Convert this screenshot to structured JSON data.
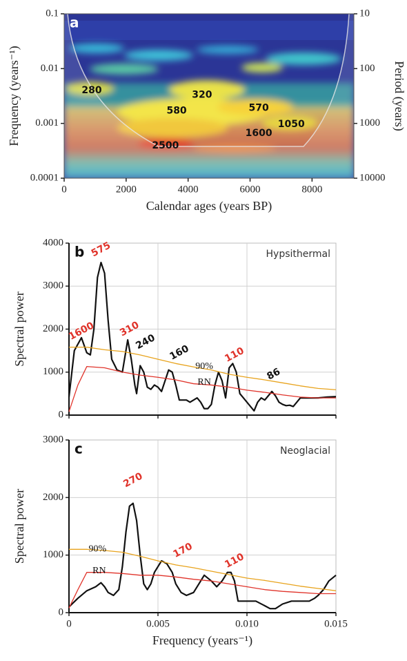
{
  "chart_data": [
    {
      "type": "wavelet",
      "panel_label": "a",
      "xlabel": "Calendar ages (years BP)",
      "ylabel": "Frequency (years⁻¹)",
      "y2label": "Period (years)",
      "xlim": [
        0,
        9350
      ],
      "xticks": [
        0,
        2000,
        4000,
        6000,
        8000
      ],
      "ylim": [
        0.0001,
        0.1
      ],
      "yticks": [
        0.0001,
        0.001,
        0.01,
        0.1
      ],
      "ylog": true,
      "y2lim": [
        10000,
        10
      ],
      "y2ticks": [
        10,
        100,
        1000,
        10000
      ],
      "annotations": [
        {
          "text": "280",
          "x": 890,
          "y": 0.004,
          "color": "#111111"
        },
        {
          "text": "320",
          "x": 4450,
          "y": 0.0033,
          "color": "#111111"
        },
        {
          "text": "580",
          "x": 3630,
          "y": 0.0017,
          "color": "#111111"
        },
        {
          "text": "570",
          "x": 6280,
          "y": 0.0019,
          "color": "#111111"
        },
        {
          "text": "1050",
          "x": 7330,
          "y": 0.00096,
          "color": "#111111"
        },
        {
          "text": "1600",
          "x": 6280,
          "y": 0.00066,
          "color": "#111111"
        },
        {
          "text": "2500",
          "x": 3270,
          "y": 0.00039,
          "color": "#111111"
        }
      ]
    },
    {
      "type": "line",
      "panel_label": "b",
      "subtitle": "Hypsithermal",
      "ylabel": "Spectral power",
      "xlim": [
        0,
        0.015
      ],
      "xticks": [
        0,
        0.005,
        0.01,
        0.015
      ],
      "show_xtick_labels": false,
      "ylim": [
        0,
        4000
      ],
      "yticks": [
        0,
        1000,
        2000,
        3000,
        4000
      ],
      "grid": true,
      "series": [
        {
          "color": "#111111",
          "x": [
            0,
            0.0003,
            0.0007,
            0.001,
            0.0012,
            0.0014,
            0.0016,
            0.0018,
            0.002,
            0.0022,
            0.0024,
            0.0027,
            0.003,
            0.0032,
            0.0033,
            0.0035,
            0.0037,
            0.0038,
            0.004,
            0.0042,
            0.0044,
            0.0046,
            0.0048,
            0.005,
            0.0052,
            0.0054,
            0.0056,
            0.0058,
            0.006,
            0.0062,
            0.0064,
            0.0066,
            0.0068,
            0.007,
            0.0072,
            0.0074,
            0.0076,
            0.0078,
            0.008,
            0.0082,
            0.0084,
            0.0086,
            0.0088,
            0.009,
            0.0092,
            0.0094,
            0.0096,
            0.0098,
            0.01,
            0.0102,
            0.0104,
            0.0106,
            0.0108,
            0.011,
            0.0112,
            0.0114,
            0.0116,
            0.0118,
            0.012,
            0.0122,
            0.0124,
            0.0126,
            0.0128,
            0.013,
            0.0135,
            0.014,
            0.0145,
            0.015
          ],
          "values": [
            420,
            1500,
            1800,
            1450,
            1400,
            2000,
            3200,
            3550,
            3300,
            2200,
            1300,
            1050,
            1000,
            1500,
            1750,
            1300,
            700,
            500,
            1150,
            1000,
            650,
            600,
            700,
            650,
            550,
            800,
            1050,
            1000,
            700,
            350,
            350,
            350,
            300,
            350,
            400,
            300,
            150,
            150,
            250,
            700,
            1000,
            800,
            400,
            1100,
            1200,
            1000,
            500,
            400,
            300,
            200,
            100,
            300,
            400,
            350,
            450,
            550,
            450,
            300,
            250,
            220,
            230,
            200,
            300,
            400,
            400,
            400,
            420,
            430
          ]
        },
        {
          "color": "#e8a31c",
          "x": [
            0,
            0.001,
            0.002,
            0.003,
            0.004,
            0.005,
            0.006,
            0.007,
            0.008,
            0.009,
            0.01,
            0.011,
            0.012,
            0.013,
            0.014,
            0.015
          ],
          "values": [
            1580,
            1580,
            1520,
            1480,
            1400,
            1300,
            1200,
            1120,
            1050,
            950,
            880,
            820,
            750,
            680,
            620,
            590
          ]
        },
        {
          "color": "#e0332a",
          "x": [
            0,
            0.0005,
            0.001,
            0.002,
            0.003,
            0.004,
            0.005,
            0.006,
            0.007,
            0.008,
            0.009,
            0.01,
            0.011,
            0.012,
            0.013,
            0.014,
            0.015
          ],
          "values": [
            80,
            700,
            1130,
            1100,
            1000,
            930,
            880,
            820,
            730,
            700,
            650,
            580,
            530,
            470,
            420,
            400,
            400
          ]
        }
      ],
      "annotations": [
        {
          "text": "1600",
          "x": 0.0007,
          "y": 1950,
          "color": "#e0332a",
          "kind": "peak"
        },
        {
          "text": "575",
          "x": 0.0018,
          "y": 3850,
          "color": "#e0332a",
          "kind": "peak"
        },
        {
          "text": "310",
          "x": 0.0034,
          "y": 2000,
          "color": "#e0332a",
          "kind": "peak"
        },
        {
          "text": "240",
          "x": 0.0043,
          "y": 1700,
          "color": "#111111",
          "kind": "peak"
        },
        {
          "text": "160",
          "x": 0.0062,
          "y": 1450,
          "color": "#111111",
          "kind": "peak"
        },
        {
          "text": "110",
          "x": 0.0093,
          "y": 1400,
          "color": "#e0332a",
          "kind": "peak"
        },
        {
          "text": "86",
          "x": 0.0115,
          "y": 950,
          "color": "#111111",
          "kind": "peak"
        },
        {
          "text": "90%",
          "x": 0.0076,
          "y": 1130,
          "color": "#111111",
          "kind": "line"
        },
        {
          "text": "RN",
          "x": 0.0076,
          "y": 760,
          "color": "#111111",
          "kind": "line"
        }
      ]
    },
    {
      "type": "line",
      "panel_label": "c",
      "subtitle": "Neoglacial",
      "ylabel": "Spectral power",
      "xlabel": "Frequency (years⁻¹)",
      "xlim": [
        0,
        0.015
      ],
      "xticks": [
        0,
        0.005,
        {
          "value": 0.01,
          "label": "0.010"
        },
        0.015
      ],
      "show_xtick_labels": true,
      "ylim": [
        0,
        3000
      ],
      "yticks": [
        0,
        1000,
        2000,
        3000
      ],
      "grid": true,
      "series": [
        {
          "color": "#111111",
          "x": [
            0,
            0.0005,
            0.001,
            0.0015,
            0.0018,
            0.002,
            0.0022,
            0.0025,
            0.0028,
            0.003,
            0.0032,
            0.0034,
            0.0036,
            0.0038,
            0.004,
            0.0042,
            0.0044,
            0.0046,
            0.0048,
            0.005,
            0.0052,
            0.0055,
            0.0058,
            0.006,
            0.0063,
            0.0066,
            0.007,
            0.0073,
            0.0076,
            0.008,
            0.0083,
            0.0086,
            0.0089,
            0.0091,
            0.0093,
            0.0095,
            0.0105,
            0.011,
            0.0113,
            0.0116,
            0.012,
            0.0125,
            0.013,
            0.0135,
            0.0138,
            0.014,
            0.0143,
            0.0146,
            0.015
          ],
          "values": [
            100,
            250,
            380,
            450,
            520,
            450,
            350,
            300,
            400,
            800,
            1400,
            1850,
            1900,
            1600,
            1000,
            500,
            400,
            500,
            700,
            800,
            900,
            850,
            700,
            500,
            350,
            300,
            350,
            500,
            650,
            550,
            450,
            550,
            700,
            700,
            550,
            200,
            200,
            120,
            70,
            70,
            150,
            200,
            200,
            200,
            250,
            300,
            400,
            550,
            650
          ]
        },
        {
          "color": "#e8a31c",
          "x": [
            0,
            0.001,
            0.002,
            0.003,
            0.004,
            0.005,
            0.006,
            0.007,
            0.008,
            0.009,
            0.01,
            0.011,
            0.012,
            0.013,
            0.014,
            0.015
          ],
          "values": [
            1100,
            1100,
            1080,
            1050,
            980,
            900,
            830,
            780,
            720,
            660,
            600,
            560,
            510,
            460,
            420,
            380
          ]
        },
        {
          "color": "#e0332a",
          "x": [
            0,
            0.0005,
            0.001,
            0.002,
            0.003,
            0.004,
            0.005,
            0.006,
            0.007,
            0.008,
            0.009,
            0.01,
            0.011,
            0.012,
            0.013,
            0.014,
            0.015
          ],
          "values": [
            80,
            400,
            700,
            700,
            680,
            650,
            650,
            620,
            580,
            550,
            500,
            450,
            400,
            370,
            350,
            330,
            330
          ]
        }
      ],
      "annotations": [
        {
          "text": "270",
          "x": 0.0036,
          "y": 2300,
          "color": "#e0332a",
          "kind": "peak"
        },
        {
          "text": "170",
          "x": 0.0064,
          "y": 1080,
          "color": "#e0332a",
          "kind": "peak"
        },
        {
          "text": "110",
          "x": 0.0093,
          "y": 900,
          "color": "#e0332a",
          "kind": "peak"
        },
        {
          "text": "90%",
          "x": 0.0016,
          "y": 1100,
          "color": "#111111",
          "kind": "line"
        },
        {
          "text": "RN",
          "x": 0.0017,
          "y": 720,
          "color": "#111111",
          "kind": "line"
        }
      ]
    }
  ]
}
